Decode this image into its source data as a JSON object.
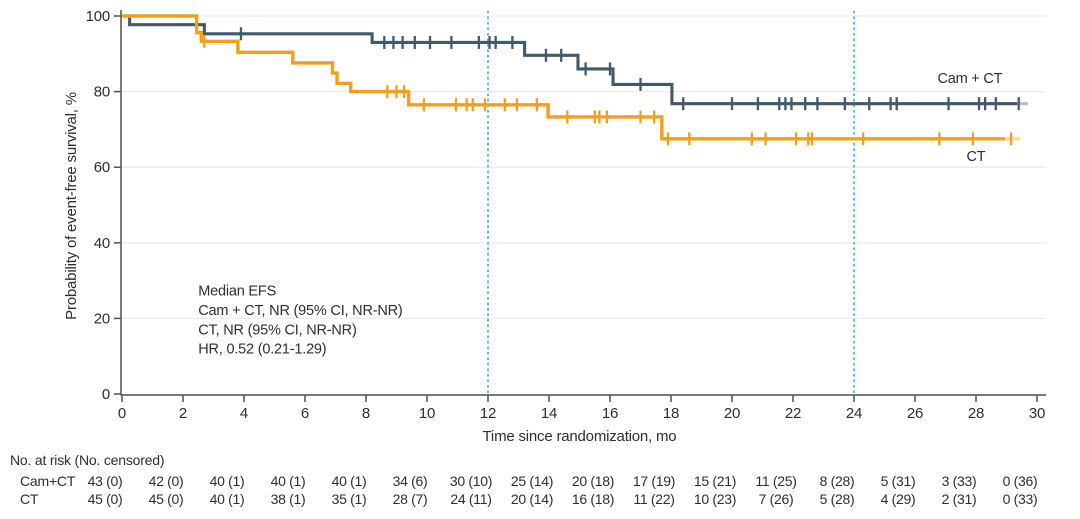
{
  "chart_data": {
    "type": "line",
    "subtype": "kaplan_meier_step",
    "title": "",
    "xlabel": "Time since randomization, mo",
    "ylabel": "Probability of event-free survival, %",
    "xlim": [
      0,
      30
    ],
    "ylim": [
      0,
      100
    ],
    "xticks": [
      0,
      2,
      4,
      6,
      8,
      10,
      12,
      14,
      16,
      18,
      20,
      22,
      24,
      26,
      28,
      30
    ],
    "yticks": [
      0,
      20,
      40,
      60,
      80,
      100
    ],
    "grid": true,
    "reference_lines_x": [
      12,
      24
    ],
    "colors": {
      "reference_line": "#5bc0e6",
      "gridline": "#ececec",
      "axis": "#4f4f4f",
      "text": "#2e2e2e"
    },
    "annotation": {
      "x_mo": 2.5,
      "y_pct": 26,
      "line_height_px": 19.3,
      "lines": [
        "Median EFS",
        "Cam + CT, NR (95% CI, NR-NR)",
        "CT, NR (95% CI, NR-NR)",
        "HR, 0.52 (0.21-1.29)"
      ]
    },
    "series": [
      {
        "name": "Cam + CT",
        "color": "#415a6b",
        "stroke_width": 3.1,
        "label": {
          "text": "Cam + CT",
          "x_mo": 27.8,
          "y_pct": 82.3
        },
        "steps": [
          [
            0,
            100
          ],
          [
            0.25,
            97.7
          ],
          [
            2.7,
            95.3
          ],
          [
            8.2,
            93.0
          ],
          [
            13.2,
            89.6
          ],
          [
            14.95,
            86.0
          ],
          [
            16.1,
            81.9
          ],
          [
            18.03,
            76.8
          ]
        ],
        "end_mo": 29.35,
        "tail_mo": 29.7,
        "censors": [
          [
            3.9,
            95.3
          ],
          [
            8.6,
            93.0
          ],
          [
            8.9,
            93.0
          ],
          [
            9.2,
            93.0
          ],
          [
            9.6,
            93.0
          ],
          [
            10.1,
            93.0
          ],
          [
            10.8,
            93.0
          ],
          [
            11.7,
            93.0
          ],
          [
            12.05,
            93.0
          ],
          [
            12.25,
            93.0
          ],
          [
            12.8,
            93.0
          ],
          [
            13.9,
            89.6
          ],
          [
            14.4,
            89.6
          ],
          [
            15.2,
            86.0
          ],
          [
            16.0,
            86.0
          ],
          [
            17.0,
            81.9
          ],
          [
            18.4,
            76.8
          ],
          [
            20.0,
            76.8
          ],
          [
            20.85,
            76.8
          ],
          [
            21.55,
            76.8
          ],
          [
            21.75,
            76.8
          ],
          [
            21.95,
            76.8
          ],
          [
            22.4,
            76.8
          ],
          [
            22.8,
            76.8
          ],
          [
            23.7,
            76.8
          ],
          [
            24.5,
            76.8
          ],
          [
            25.2,
            76.8
          ],
          [
            25.4,
            76.8
          ],
          [
            27.1,
            76.8
          ],
          [
            28.1,
            76.8
          ],
          [
            28.3,
            76.8
          ],
          [
            28.65,
            76.8
          ],
          [
            29.4,
            76.8
          ]
        ]
      },
      {
        "name": "CT",
        "color": "#f0a01e",
        "stroke_width": 3.4,
        "label": {
          "text": "CT",
          "x_mo": 28.0,
          "y_pct": 61.6
        },
        "steps": [
          [
            0,
            100
          ],
          [
            2.45,
            95.6
          ],
          [
            2.6,
            93.3
          ],
          [
            3.8,
            90.4
          ],
          [
            5.6,
            87.6
          ],
          [
            6.9,
            84.9
          ],
          [
            7.05,
            82.2
          ],
          [
            7.5,
            80.0
          ],
          [
            9.4,
            76.5
          ],
          [
            13.97,
            73.3
          ],
          [
            17.7,
            67.5
          ]
        ],
        "end_mo": 28.95,
        "tail_mo": 29.45,
        "censors": [
          [
            2.7,
            93.3
          ],
          [
            8.7,
            80.0
          ],
          [
            9.0,
            80.0
          ],
          [
            9.25,
            80.0
          ],
          [
            9.9,
            76.5
          ],
          [
            10.95,
            76.5
          ],
          [
            11.3,
            76.5
          ],
          [
            11.5,
            76.5
          ],
          [
            11.9,
            76.5
          ],
          [
            12.55,
            76.5
          ],
          [
            12.95,
            76.5
          ],
          [
            13.6,
            76.5
          ],
          [
            14.6,
            73.3
          ],
          [
            15.5,
            73.3
          ],
          [
            15.65,
            73.3
          ],
          [
            15.9,
            73.3
          ],
          [
            17.0,
            73.3
          ],
          [
            17.45,
            73.3
          ],
          [
            17.9,
            67.5
          ],
          [
            18.6,
            67.5
          ],
          [
            20.65,
            67.5
          ],
          [
            21.1,
            67.5
          ],
          [
            22.1,
            67.5
          ],
          [
            22.5,
            67.5
          ],
          [
            22.62,
            67.5
          ],
          [
            24.3,
            67.5
          ],
          [
            26.8,
            67.5
          ],
          [
            27.9,
            67.5
          ],
          [
            29.15,
            67.5
          ]
        ]
      }
    ]
  },
  "risk_table": {
    "header": "No. at risk (No. censored)",
    "months": [
      0,
      2,
      4,
      6,
      8,
      10,
      12,
      14,
      16,
      18,
      20,
      22,
      24,
      26,
      28,
      30
    ],
    "rows": [
      {
        "label": "Cam+CT",
        "values": [
          "43 (0)",
          "42 (0)",
          "40 (1)",
          "40 (1)",
          "40 (1)",
          "34 (6)",
          "30 (10)",
          "25 (14)",
          "20 (18)",
          "17 (19)",
          "15 (21)",
          "11 (25)",
          "8 (28)",
          "5 (31)",
          "3 (33)",
          "0 (36)"
        ]
      },
      {
        "label": "CT",
        "values": [
          "45 (0)",
          "45 (0)",
          "40 (1)",
          "38 (1)",
          "35 (1)",
          "28 (7)",
          "24 (11)",
          "20 (14)",
          "16 (18)",
          "11 (22)",
          "10 (23)",
          "7 (26)",
          "5 (28)",
          "4 (29)",
          "2 (31)",
          "0 (33)"
        ]
      }
    ]
  }
}
